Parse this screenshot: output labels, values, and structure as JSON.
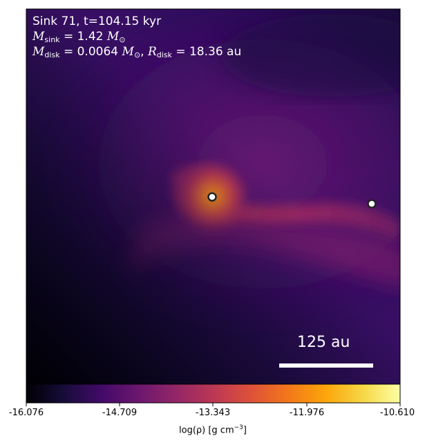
{
  "annotation": {
    "line1": "Sink 71, t=104.15 kyr",
    "m_sink_symbol": "M",
    "m_sink_sub": "sink",
    "m_sink_value": " = 1.42 ",
    "m_sink_unit": "M",
    "m_sink_unit_sub": "⊙",
    "m_disk_symbol": "M",
    "m_disk_sub": "disk",
    "m_disk_value": " = 0.0064 ",
    "m_disk_unit": "M",
    "m_disk_unit_sub": "⊙",
    "r_disk_sep": ", ",
    "r_disk_symbol": "R",
    "r_disk_sub": "disk",
    "r_disk_value": " = 18.36 au"
  },
  "scale_bar": {
    "label": "125 au"
  },
  "sinks": [
    {
      "name": "primary-sink",
      "fill": "#ffffff",
      "stroke": "#222222"
    },
    {
      "name": "secondary-sink",
      "fill": "#ffffff",
      "stroke": "#222222"
    }
  ],
  "colorbar": {
    "colormap": "inferno",
    "ticks": [
      "-16.076",
      "-14.709",
      "-13.343",
      "-11.976",
      "-10.610"
    ],
    "label_main": "log(ρ) [g cm",
    "label_exp": "−3",
    "label_end": "]"
  },
  "colors": {
    "background_dark": "#000004",
    "clump_core": "#fb9b06",
    "filament": "#a02a60",
    "envelope": "#3b0f70"
  }
}
